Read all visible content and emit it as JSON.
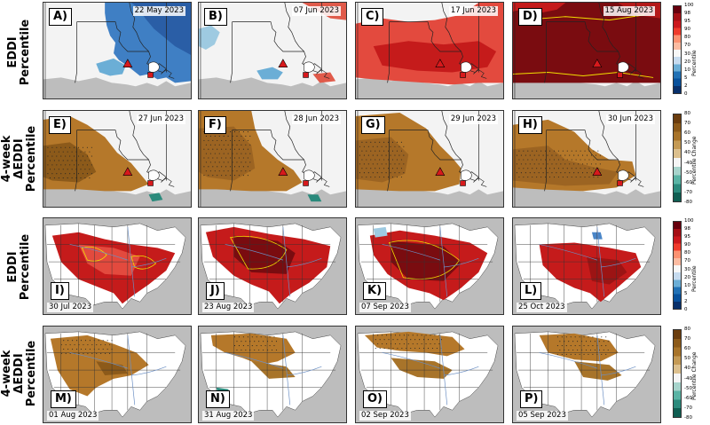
{
  "rows": [
    {
      "label": "EDDI\nPercentile"
    },
    {
      "label": "4-week ΔEDDI\nPercentile"
    },
    {
      "label": "EDDI\nPercentile"
    },
    {
      "label": "4-week ΔEDDI\nPercentile"
    }
  ],
  "panels": [
    {
      "tag": "A)",
      "date": "22 May 2023"
    },
    {
      "tag": "B)",
      "date": "07 Jun 2023"
    },
    {
      "tag": "C)",
      "date": "17 Jun 2023"
    },
    {
      "tag": "D)",
      "date": "15 Aug 2023"
    },
    {
      "tag": "E)",
      "date": "27 Jun 2023"
    },
    {
      "tag": "F)",
      "date": "28 Jun 2023"
    },
    {
      "tag": "G)",
      "date": "29 Jun 2023"
    },
    {
      "tag": "H)",
      "date": "30 Jun 2023"
    },
    {
      "tag": "I)",
      "date": "30 Jul 2023"
    },
    {
      "tag": "J)",
      "date": "23 Aug 2023"
    },
    {
      "tag": "K)",
      "date": "07 Sep 2023"
    },
    {
      "tag": "L)",
      "date": "25 Oct 2023"
    },
    {
      "tag": "M)",
      "date": "01 Aug 2023"
    },
    {
      "tag": "N)",
      "date": "31 Aug 2023"
    },
    {
      "tag": "O)",
      "date": "02 Sep 2023"
    },
    {
      "tag": "P)",
      "date": "05 Sep 2023"
    }
  ],
  "colorbars": [
    {
      "title": "Percentile",
      "ticks": [
        "100",
        "98",
        "95",
        "90",
        "80",
        "70",
        "30",
        "20",
        "10",
        "5",
        "2",
        "0"
      ],
      "colors": [
        "#67000d",
        "#a50f15",
        "#cb181d",
        "#ef3b2c",
        "#fc9272",
        "#fcbba1",
        "#f7f7f7",
        "#c6dbef",
        "#6baed6",
        "#2171b5",
        "#08519c",
        "#08306b"
      ]
    },
    {
      "title": "Percentile Change",
      "ticks": [
        "80",
        "70",
        "60",
        "50",
        "40",
        "-40",
        "-50",
        "-60",
        "-70",
        "-80"
      ],
      "colors": [
        "#6b3d0e",
        "#8c5a1a",
        "#a8742a",
        "#c49a55",
        "#dcc08e",
        "#f5f5f5",
        "#a7d4cc",
        "#5ab4a5",
        "#2b8a7c",
        "#0f5e52"
      ]
    },
    {
      "title": "Percentile",
      "ticks": [
        "100",
        "98",
        "95",
        "90",
        "80",
        "70",
        "30",
        "20",
        "10",
        "5",
        "2",
        "0"
      ],
      "colors": [
        "#67000d",
        "#a50f15",
        "#cb181d",
        "#ef3b2c",
        "#fc9272",
        "#fcbba1",
        "#f7f7f7",
        "#c6dbef",
        "#6baed6",
        "#2171b5",
        "#08519c",
        "#08306b"
      ]
    },
    {
      "title": "Percentile Change",
      "ticks": [
        "80",
        "70",
        "60",
        "50",
        "40",
        "-40",
        "-50",
        "-60",
        "-70",
        "-80"
      ],
      "colors": [
        "#6b3d0e",
        "#8c5a1a",
        "#a8742a",
        "#c49a55",
        "#dcc08e",
        "#f5f5f5",
        "#a7d4cc",
        "#5ab4a5",
        "#2b8a7c",
        "#0f5e52"
      ]
    }
  ],
  "colors": {
    "ocean": "#bdbdbd",
    "land_neutral": "#f3f3f3",
    "wet": "#2b6cb0",
    "dry_red": "#c51b1b",
    "dry_dark": "#7a0c10",
    "brown": "#b5782a",
    "teal": "#2b8a7c",
    "contour": "#f2e000"
  }
}
